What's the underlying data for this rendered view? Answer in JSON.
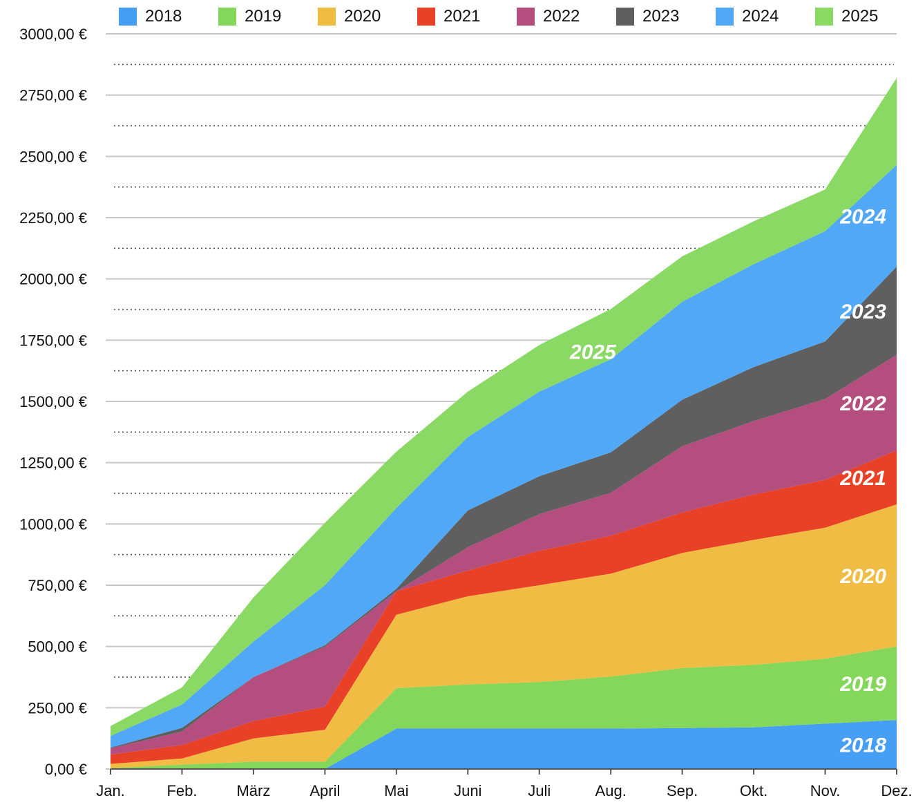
{
  "chart_data": {
    "type": "area",
    "stacked": true,
    "title": "",
    "xlabel": "",
    "ylabel": "",
    "ylim": [
      0,
      3000
    ],
    "grid": true,
    "legend_position": "top",
    "categories": [
      "Jan.",
      "Feb.",
      "März",
      "April",
      "Mai",
      "Juni",
      "Juli",
      "Aug.",
      "Sep.",
      "Okt.",
      "Nov.",
      "Dez."
    ],
    "y_ticks": [
      "0,00 €",
      "250,00 €",
      "500,00 €",
      "750,00 €",
      "1000,00 €",
      "1250,00 €",
      "1500,00 €",
      "1750,00 €",
      "2000,00 €",
      "2250,00 €",
      "2500,00 €",
      "2750,00 €",
      "3000,00 €"
    ],
    "series": [
      {
        "name": "2018",
        "color": "#479EF5",
        "label": "2018",
        "values": [
          0,
          0,
          0,
          0,
          165,
          165,
          165,
          165,
          167,
          170,
          185,
          200
        ]
      },
      {
        "name": "2019",
        "color": "#84D75A",
        "label": "2019",
        "values": [
          3,
          18,
          30,
          30,
          165,
          180,
          190,
          212,
          245,
          255,
          265,
          300
        ]
      },
      {
        "name": "2020",
        "color": "#F0BC43",
        "label": "2020",
        "values": [
          18,
          25,
          95,
          130,
          300,
          360,
          395,
          420,
          470,
          510,
          535,
          580
        ]
      },
      {
        "name": "2021",
        "color": "#E84127",
        "label": "2021",
        "values": [
          38,
          55,
          70,
          95,
          95,
          105,
          140,
          155,
          165,
          185,
          195,
          220
        ]
      },
      {
        "name": "2022",
        "color": "#B44E7E",
        "label": "2022",
        "values": [
          25,
          55,
          180,
          245,
          0,
          95,
          150,
          175,
          270,
          300,
          330,
          390
        ]
      },
      {
        "name": "2023",
        "color": "#5F5F5F",
        "label": "2023",
        "values": [
          3,
          15,
          0,
          5,
          10,
          150,
          155,
          165,
          190,
          220,
          235,
          360
        ]
      },
      {
        "name": "2024",
        "color": "#51A8F6",
        "label": "2024",
        "values": [
          48,
          95,
          145,
          245,
          330,
          300,
          345,
          380,
          400,
          420,
          450,
          415
        ]
      },
      {
        "name": "2025",
        "color": "#89D964",
        "label": "2025",
        "values": [
          40,
          70,
          180,
          255,
          230,
          185,
          190,
          205,
          185,
          175,
          170,
          355
        ]
      }
    ]
  }
}
